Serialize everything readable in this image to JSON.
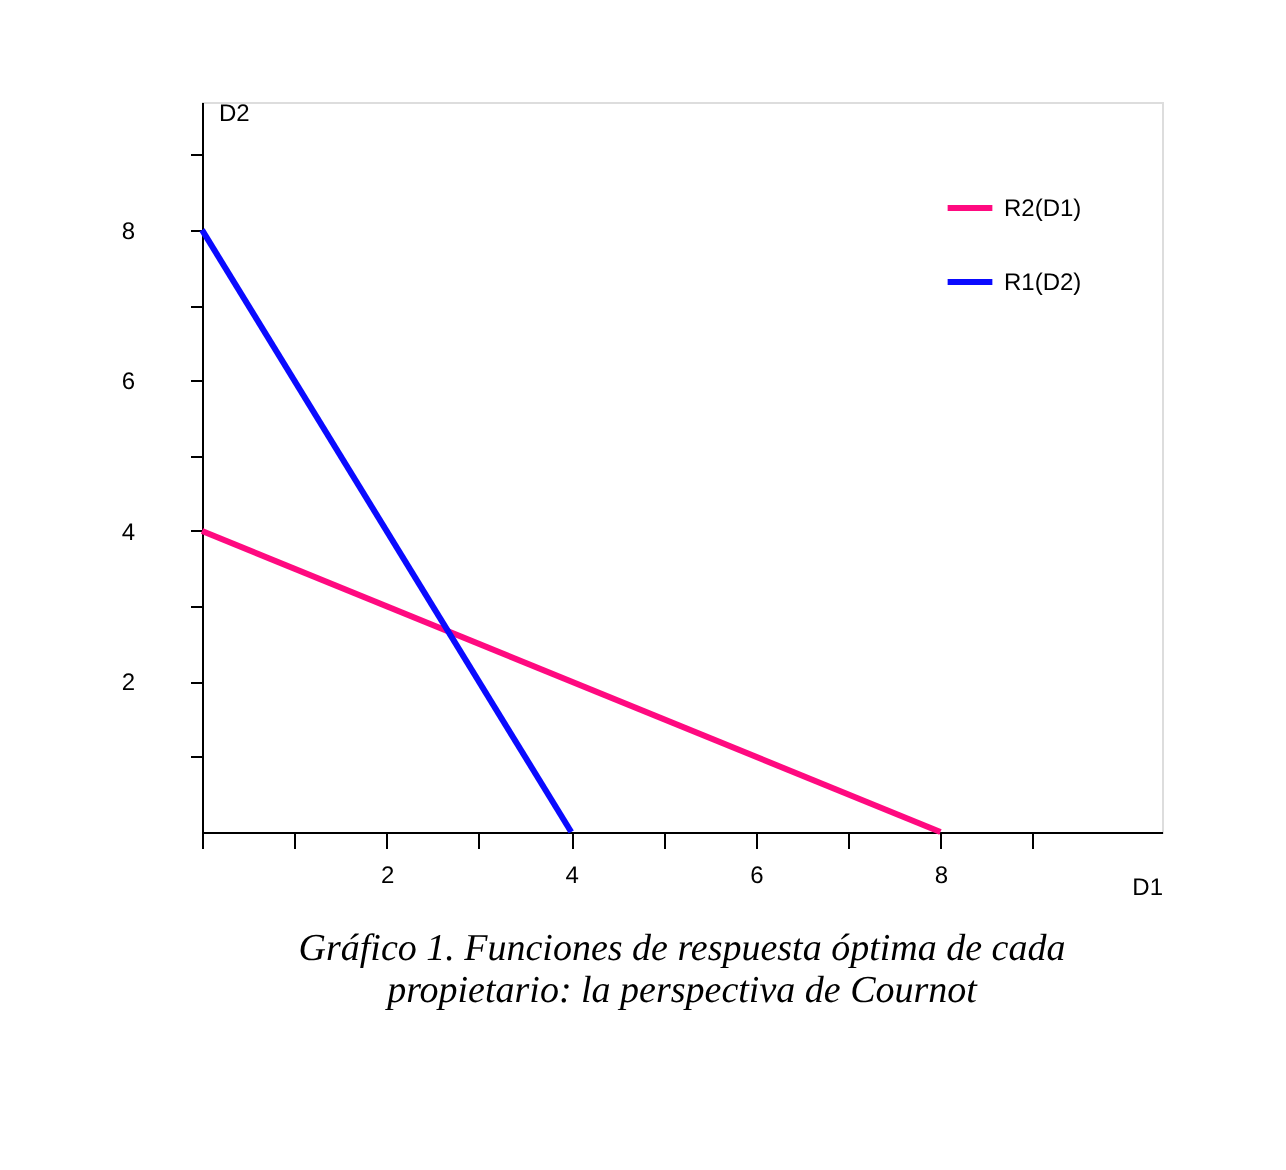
{
  "chart_data": {
    "type": "line",
    "xlabel": "D1",
    "ylabel": "D2",
    "series": [
      {
        "name": "R2(D1)",
        "color": "#ff0a80",
        "x": [
          0,
          8
        ],
        "values": [
          4,
          0
        ]
      },
      {
        "name": "R1(D2)",
        "color": "#0a0aff",
        "x": [
          0,
          4
        ],
        "values": [
          8,
          0
        ]
      }
    ],
    "xlim": [
      0,
      10.4
    ],
    "ylim": [
      0,
      9.7
    ],
    "xticks": [
      {
        "value": 0,
        "label": null
      },
      {
        "value": 1,
        "label": null
      },
      2,
      {
        "value": 3,
        "label": null
      },
      4,
      {
        "value": 5,
        "label": null
      },
      6,
      {
        "value": 7,
        "label": null
      },
      8,
      {
        "value": 9,
        "label": null
      }
    ],
    "yticks": [
      {
        "value": 1,
        "label": null
      },
      2,
      {
        "value": 3,
        "label": null
      },
      4,
      {
        "value": 5,
        "label": null
      },
      6,
      {
        "value": 7,
        "label": null
      },
      8,
      {
        "value": 9,
        "label": null
      }
    ],
    "grid": false,
    "legend": "top right",
    "marker": "none",
    "line_style": "solid",
    "annotations": [
      "Gráfico 1. Funciones de respuesta óptima de cada propietario: la perspectiva de Cournot"
    ]
  }
}
